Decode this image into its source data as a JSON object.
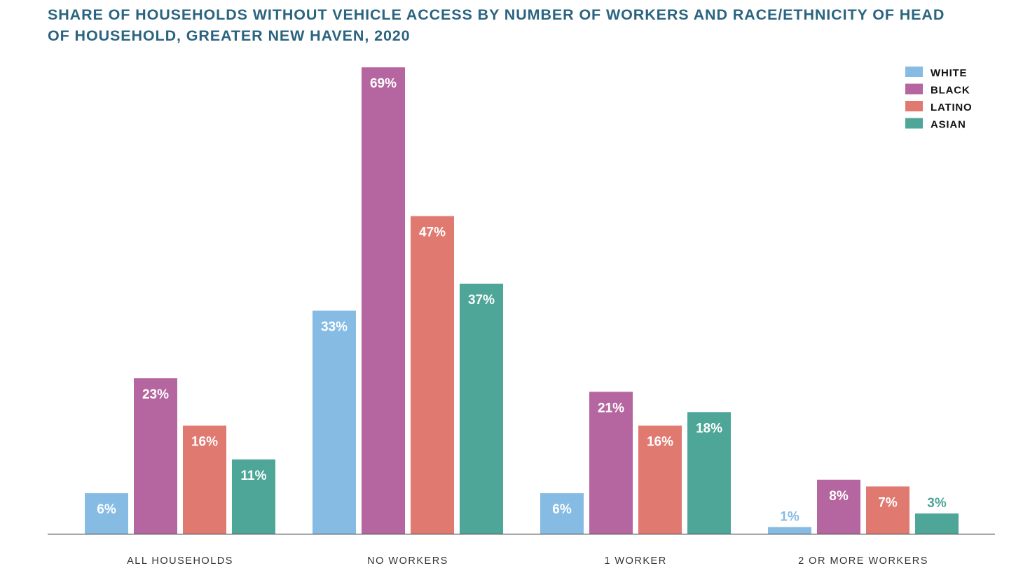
{
  "chart_data": {
    "type": "bar",
    "title": "SHARE OF HOUSEHOLDS WITHOUT VEHICLE ACCESS BY NUMBER OF WORKERS AND RACE/ETHNICITY OF HEAD OF HOUSEHOLD, GREATER NEW HAVEN, 2020",
    "xlabel": "",
    "ylabel": "",
    "ylim": [
      0,
      70
    ],
    "grid": false,
    "legend_position": "top-right",
    "categories": [
      "ALL HOUSEHOLDS",
      "NO WORKERS",
      "1 WORKER",
      "2 OR MORE WORKERS"
    ],
    "series": [
      {
        "name": "WHITE",
        "color": "#86bce4",
        "values": [
          6,
          33,
          6,
          1
        ]
      },
      {
        "name": "BLACK",
        "color": "#b5659f",
        "values": [
          23,
          69,
          21,
          8
        ]
      },
      {
        "name": "LATINO",
        "color": "#e07970",
        "values": [
          16,
          47,
          16,
          7
        ]
      },
      {
        "name": "ASIAN",
        "color": "#4da697",
        "values": [
          11,
          37,
          18,
          3
        ]
      }
    ],
    "value_suffix": "%"
  }
}
